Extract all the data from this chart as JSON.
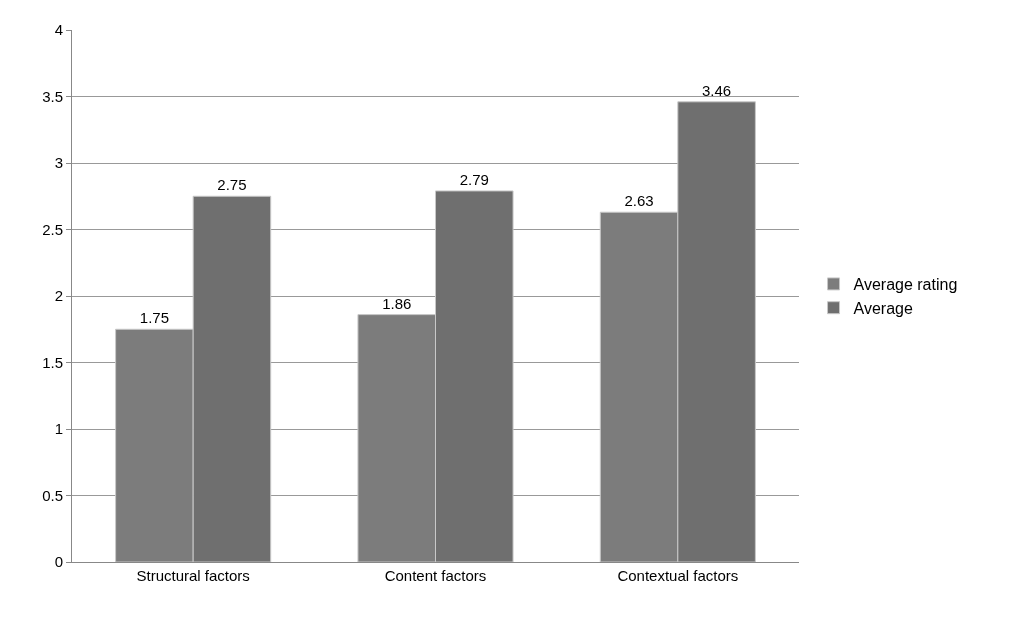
{
  "chart_data": {
    "type": "bar",
    "categories": [
      "Structural factors",
      "Content factors",
      "Contextual factors"
    ],
    "series": [
      {
        "name": "Average rating",
        "color": "#7c7c7c",
        "values": [
          1.75,
          1.86,
          2.63
        ]
      },
      {
        "name": "Average",
        "color": "#6f6f6f",
        "values": [
          2.75,
          2.79,
          3.46
        ]
      }
    ],
    "ylim": [
      0,
      4
    ],
    "yticks": [
      0,
      0.5,
      1,
      1.5,
      2,
      2.5,
      3,
      3.5,
      4
    ],
    "grid": "y",
    "legend": "right",
    "data_labels": true
  }
}
